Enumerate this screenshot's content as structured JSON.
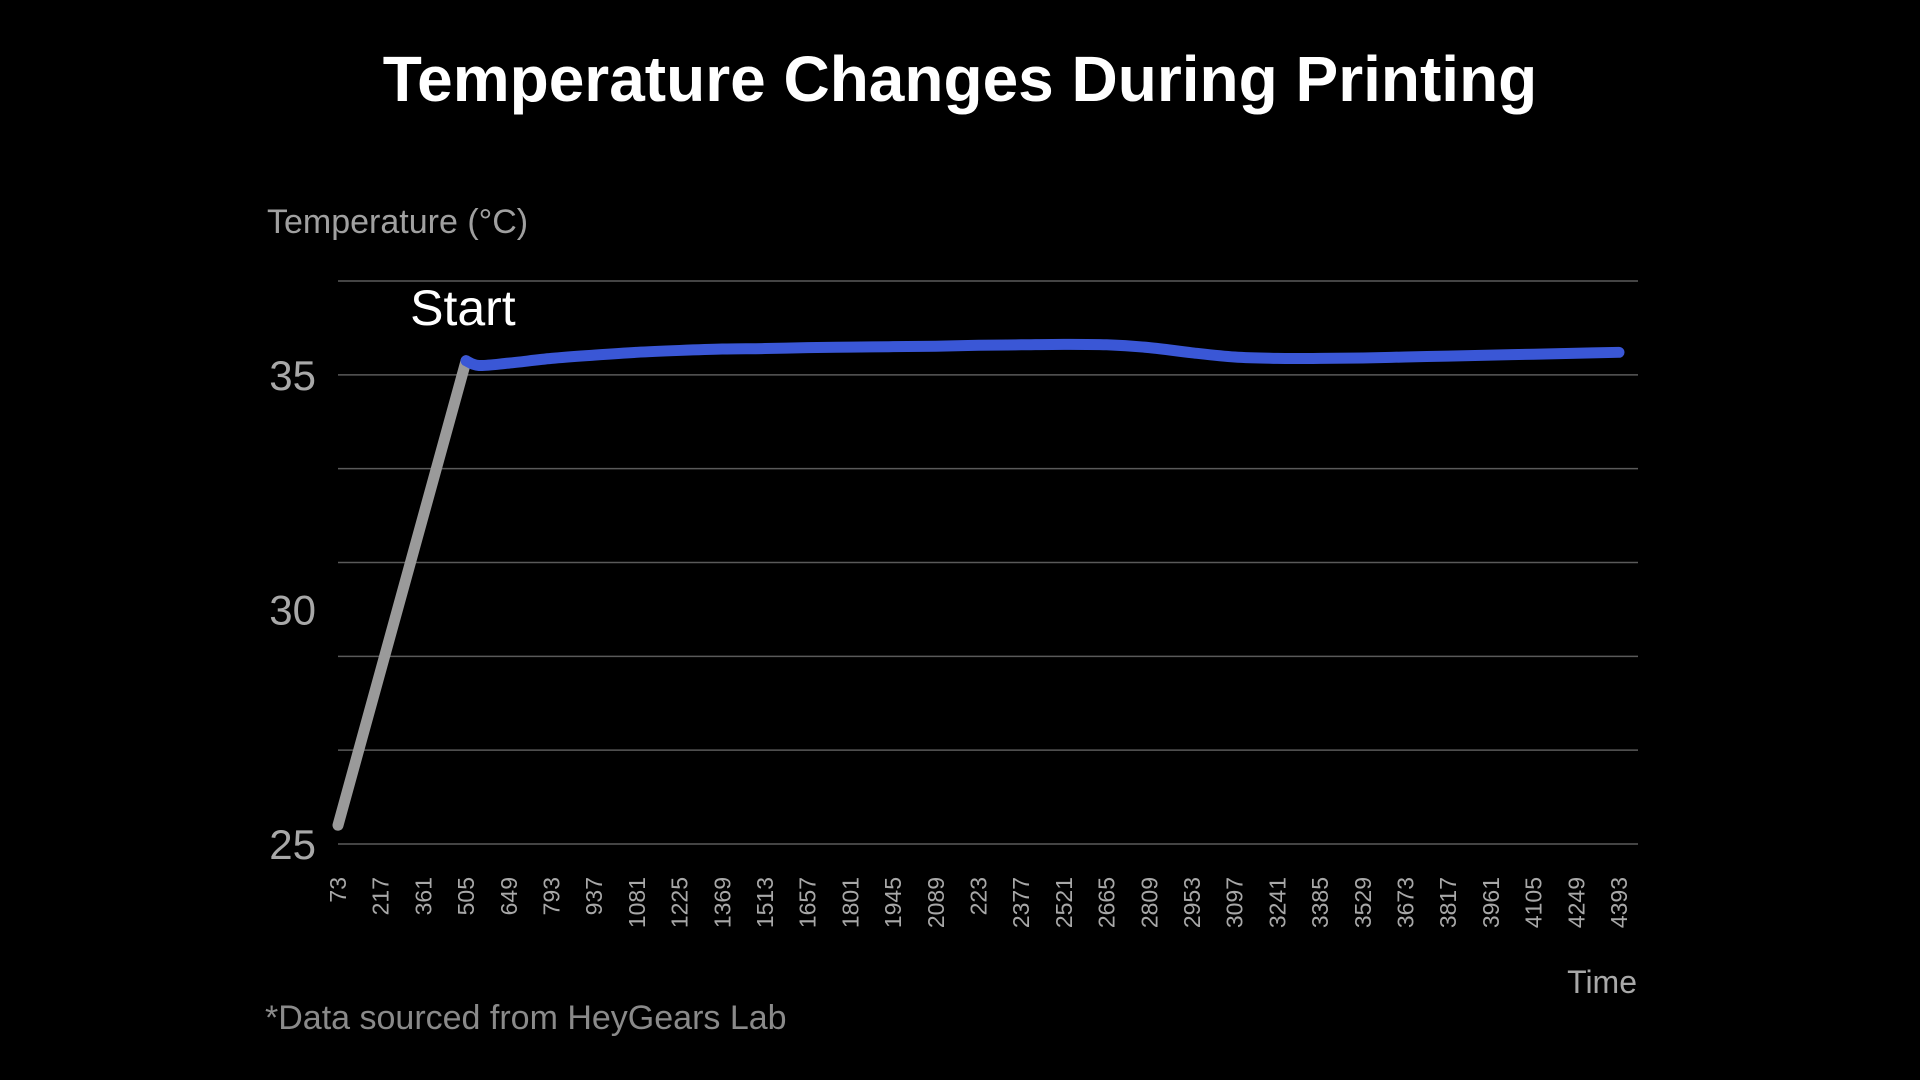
{
  "chart_data": {
    "type": "line",
    "title": "Temperature Changes During Printing",
    "ylabel": "Temperature (°C)",
    "xlabel": "Time",
    "ylim": [
      25,
      37
    ],
    "y_ticks": [
      {
        "value": 25,
        "label": "25"
      },
      {
        "value": 30,
        "label": "30"
      },
      {
        "value": 35,
        "label": "35"
      }
    ],
    "gridlines": [
      25,
      27,
      29,
      31,
      33,
      35,
      37
    ],
    "x_categories": [
      "73",
      "217",
      "361",
      "505",
      "649",
      "793",
      "937",
      "1081",
      "1225",
      "1369",
      "1513",
      "1657",
      "1801",
      "1945",
      "2089",
      "223",
      "2377",
      "2521",
      "2665",
      "2809",
      "2953",
      "3097",
      "3241",
      "3385",
      "3529",
      "3673",
      "3817",
      "3961",
      "4105",
      "4249",
      "4393"
    ],
    "series": [
      {
        "segment": "warm-up",
        "color": "#9a9a9a",
        "points": [
          [
            0,
            25.4
          ],
          [
            3,
            35.3
          ]
        ]
      },
      {
        "segment": "printing",
        "color": "#3a57d6",
        "points": [
          [
            3,
            35.3
          ],
          [
            3.3,
            35.2
          ],
          [
            4,
            35.25
          ],
          [
            5,
            35.35
          ],
          [
            6,
            35.42
          ],
          [
            7,
            35.48
          ],
          [
            8,
            35.52
          ],
          [
            9,
            35.55
          ],
          [
            10,
            35.56
          ],
          [
            11,
            35.58
          ],
          [
            12,
            35.59
          ],
          [
            13,
            35.6
          ],
          [
            14,
            35.61
          ],
          [
            15,
            35.63
          ],
          [
            16,
            35.64
          ],
          [
            17,
            35.65
          ],
          [
            18,
            35.64
          ],
          [
            19,
            35.58
          ],
          [
            20,
            35.47
          ],
          [
            21,
            35.38
          ],
          [
            22,
            35.35
          ],
          [
            23,
            35.35
          ],
          [
            24,
            35.36
          ],
          [
            25,
            35.38
          ],
          [
            26,
            35.4
          ],
          [
            27,
            35.42
          ],
          [
            28,
            35.44
          ],
          [
            29,
            35.46
          ],
          [
            30,
            35.48
          ]
        ]
      }
    ],
    "annotations": [
      {
        "text": "Start",
        "x": 3,
        "y": 35.3
      }
    ],
    "grid": true
  },
  "footnote": "*Data sourced from HeyGears Lab",
  "colors": {
    "background": "#000000",
    "grid": "#5a5a5a",
    "warmup_line": "#9a9a9a",
    "print_line": "#3a57d6"
  }
}
